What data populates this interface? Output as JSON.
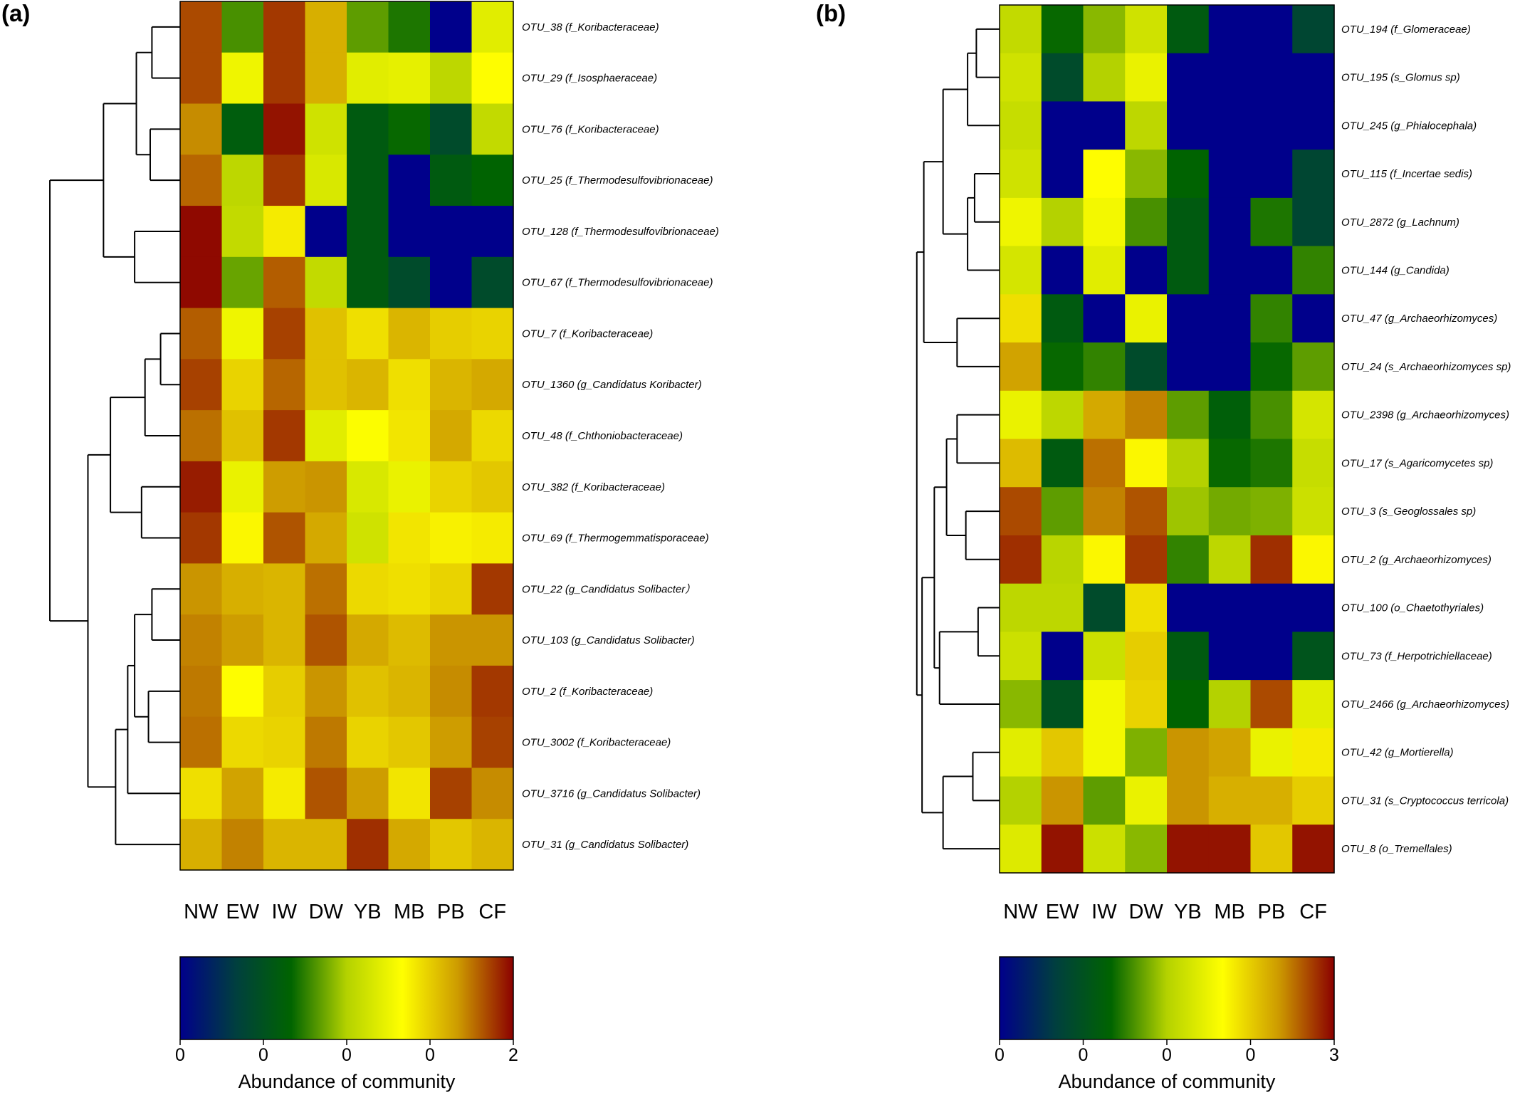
{
  "chart_data": [
    {
      "panel": "(a)",
      "type": "heatmap",
      "columns": [
        "NW",
        "EW",
        "IW",
        "DW",
        "YB",
        "MB",
        "PB",
        "CF"
      ],
      "rows": [
        "OTU_38 (f_Koribacteraceae)",
        "OTU_29 (f_Isosphaeraceae)",
        "OTU_76 (f_Koribacteraceae)",
        "OTU_25 (f_Thermodesulfovibrionaceae)",
        "OTU_128 (f_Thermodesulfovibrionaceae)",
        "OTU_67 (f_Thermodesulfovibrionaceae)",
        "OTU_7 (f_Koribacteraceae)",
        "OTU_1360 (g_Candidatus Koribacter)",
        "OTU_48 (f_Chthoniobacteraceae)",
        "OTU_382 (f_Koribacteraceae)",
        "OTU_69 (f_Thermogemmatisporaceae)",
        "OTU_22 (g_Candidatus Solibacter）",
        "OTU_103 (g_Candidatus Solibacter)",
        "OTU_2 (f_Koribacteraceae)",
        "OTU_3002 (f_Koribacteraceae)",
        "OTU_3716 (g_Candidatus Solibacter)",
        "OTU_31 (g_Candidatus Solibacter)"
      ],
      "values": [
        [
          0.92,
          0.4,
          0.94,
          0.8,
          0.42,
          0.36,
          0.0,
          0.6
        ],
        [
          0.92,
          0.63,
          0.94,
          0.8,
          0.6,
          0.61,
          0.52,
          0.67
        ],
        [
          0.85,
          0.3,
          0.98,
          0.56,
          0.29,
          0.34,
          0.22,
          0.53
        ],
        [
          0.89,
          0.52,
          0.94,
          0.58,
          0.29,
          0.0,
          0.29,
          0.33
        ],
        [
          0.99,
          0.53,
          0.7,
          0.0,
          0.29,
          0.0,
          0.0,
          0.0
        ],
        [
          0.99,
          0.43,
          0.9,
          0.53,
          0.29,
          0.22,
          0.0,
          0.22
        ],
        [
          0.9,
          0.63,
          0.93,
          0.77,
          0.72,
          0.79,
          0.75,
          0.74
        ],
        [
          0.93,
          0.74,
          0.89,
          0.77,
          0.79,
          0.72,
          0.79,
          0.81
        ],
        [
          0.88,
          0.77,
          0.94,
          0.6,
          0.66,
          0.71,
          0.81,
          0.73
        ],
        [
          0.97,
          0.62,
          0.83,
          0.84,
          0.58,
          0.62,
          0.74,
          0.76
        ],
        [
          0.94,
          0.68,
          0.91,
          0.81,
          0.56,
          0.71,
          0.69,
          0.7
        ],
        [
          0.84,
          0.8,
          0.79,
          0.88,
          0.73,
          0.72,
          0.74,
          0.94
        ],
        [
          0.86,
          0.83,
          0.79,
          0.91,
          0.81,
          0.78,
          0.84,
          0.84
        ],
        [
          0.87,
          0.67,
          0.75,
          0.84,
          0.77,
          0.79,
          0.85,
          0.94
        ],
        [
          0.88,
          0.73,
          0.74,
          0.87,
          0.74,
          0.76,
          0.83,
          0.93
        ],
        [
          0.72,
          0.82,
          0.7,
          0.91,
          0.83,
          0.71,
          0.93,
          0.85
        ],
        [
          0.8,
          0.86,
          0.79,
          0.79,
          0.95,
          0.81,
          0.76,
          0.79
        ]
      ],
      "dendrogram": {
        "leaves": 17,
        "merges": [
          [
            0,
            1,
            0.13
          ],
          [
            2,
            3,
            0.14
          ],
          [
            17,
            18,
            0.22
          ],
          [
            4,
            5,
            0.23
          ],
          [
            19,
            20,
            0.41
          ],
          [
            6,
            7,
            0.08
          ],
          [
            22,
            8,
            0.17
          ],
          [
            9,
            10,
            0.19
          ],
          [
            23,
            24,
            0.37
          ],
          [
            11,
            12,
            0.13
          ],
          [
            13,
            14,
            0.15
          ],
          [
            26,
            27,
            0.23
          ],
          [
            28,
            15,
            0.27
          ],
          [
            29,
            16,
            0.34
          ],
          [
            25,
            30,
            0.5
          ],
          [
            21,
            31,
            0.72
          ]
        ]
      },
      "colorbar": {
        "ticks": [
          "0",
          "0",
          "0",
          "0",
          "2"
        ],
        "title": "Abundance of community",
        "colors": [
          "#00008b",
          "#003f3f",
          "#006400",
          "#b4d200",
          "#ffff00",
          "#cd9b00",
          "#8b0000"
        ]
      }
    },
    {
      "panel": "(b)",
      "type": "heatmap",
      "columns": [
        "NW",
        "EW",
        "IW",
        "DW",
        "YB",
        "MB",
        "PB",
        "CF"
      ],
      "rows": [
        "OTU_194 (f_Glomeraceae)",
        "OTU_195 (s_Glomus sp)",
        "OTU_245 (g_Phialocephala)",
        "OTU_115 (f_Incertae sedis)",
        "OTU_2872 (g_Lachnum)",
        "OTU_144 (g_Candida)",
        "OTU_47 (g_Archaeorhizomyces)",
        "OTU_24 (s_Archaeorhizomyces sp)",
        "OTU_2398 (g_Archaeorhizomyces)",
        "OTU_17 (s_Agaricomycetes sp)",
        "OTU_3 (s_Geoglossales sp)",
        "OTU_2 (g_Archaeorhizomyces)",
        "OTU_100 (o_Chaetothyriales)",
        "OTU_73 (f_Herpotrichiellaceae)",
        "OTU_2466 (g_Archaeorhizomyces)",
        "OTU_42 (g_Mortierella)",
        "OTU_31 (s_Cryptococcus terricola)",
        "OTU_8 (o_Tremellales)"
      ],
      "values": [
        [
          0.53,
          0.34,
          0.46,
          0.56,
          0.29,
          0.0,
          0.0,
          0.2
        ],
        [
          0.56,
          0.22,
          0.5,
          0.62,
          0.0,
          0.0,
          0.0,
          0.0
        ],
        [
          0.54,
          0.0,
          0.0,
          0.52,
          0.0,
          0.0,
          0.0,
          0.0
        ],
        [
          0.56,
          0.0,
          0.67,
          0.46,
          0.33,
          0.0,
          0.0,
          0.2
        ],
        [
          0.63,
          0.5,
          0.64,
          0.4,
          0.29,
          0.0,
          0.36,
          0.2
        ],
        [
          0.57,
          0.0,
          0.6,
          0.0,
          0.29,
          0.0,
          0.0,
          0.38
        ],
        [
          0.72,
          0.29,
          0.0,
          0.62,
          0.0,
          0.0,
          0.38,
          0.0
        ],
        [
          0.82,
          0.34,
          0.38,
          0.22,
          0.0,
          0.0,
          0.34,
          0.42
        ],
        [
          0.62,
          0.52,
          0.81,
          0.86,
          0.42,
          0.31,
          0.4,
          0.57
        ],
        [
          0.78,
          0.29,
          0.88,
          0.68,
          0.5,
          0.34,
          0.36,
          0.54
        ],
        [
          0.92,
          0.42,
          0.86,
          0.91,
          0.48,
          0.44,
          0.45,
          0.55
        ],
        [
          0.95,
          0.51,
          0.68,
          0.94,
          0.38,
          0.52,
          0.95,
          0.68
        ],
        [
          0.52,
          0.52,
          0.22,
          0.72,
          0.0,
          0.0,
          0.0,
          0.0
        ],
        [
          0.55,
          0.0,
          0.55,
          0.75,
          0.29,
          0.0,
          0.0,
          0.26
        ],
        [
          0.46,
          0.25,
          0.64,
          0.74,
          0.33,
          0.5,
          0.92,
          0.6
        ],
        [
          0.6,
          0.76,
          0.64,
          0.45,
          0.84,
          0.82,
          0.62,
          0.7
        ],
        [
          0.5,
          0.84,
          0.42,
          0.62,
          0.84,
          0.8,
          0.8,
          0.75
        ],
        [
          0.59,
          0.98,
          0.55,
          0.46,
          0.98,
          0.98,
          0.76,
          0.98
        ]
      ],
      "dendrogram": {
        "leaves": 18,
        "merges": [
          [
            0,
            1,
            0.1
          ],
          [
            18,
            2,
            0.15
          ],
          [
            3,
            4,
            0.11
          ],
          [
            20,
            5,
            0.15
          ],
          [
            19,
            21,
            0.29
          ],
          [
            6,
            7,
            0.21
          ],
          [
            22,
            23,
            0.4
          ],
          [
            8,
            9,
            0.21
          ],
          [
            10,
            11,
            0.16
          ],
          [
            25,
            26,
            0.27
          ],
          [
            12,
            13,
            0.09
          ],
          [
            28,
            14,
            0.31
          ],
          [
            27,
            29,
            0.34
          ],
          [
            15,
            16,
            0.12
          ],
          [
            31,
            17,
            0.29
          ],
          [
            30,
            32,
            0.41
          ],
          [
            24,
            33,
            0.44
          ]
        ]
      },
      "colorbar": {
        "ticks": [
          "0",
          "0",
          "0",
          "0",
          "3"
        ],
        "title": "Abundance of community",
        "colors": [
          "#00008b",
          "#003f3f",
          "#006400",
          "#b4d200",
          "#ffff00",
          "#cd9b00",
          "#8b0000"
        ]
      }
    }
  ]
}
